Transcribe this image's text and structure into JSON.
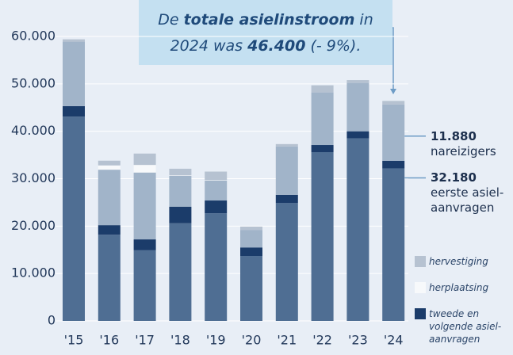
{
  "chart_data": {
    "type": "stacked-bar",
    "title_lines": [
      [
        {
          "text": "De ",
          "bold": false
        },
        {
          "text": "totale asielinstroom",
          "bold": true
        },
        {
          "text": " in",
          "bold": false
        }
      ],
      [
        {
          "text": "2024 was ",
          "bold": false
        },
        {
          "text": "46.400",
          "bold": true
        },
        {
          "text": " (- 9%).",
          "bold": false
        }
      ]
    ],
    "categories": [
      "'15",
      "'16",
      "'17",
      "'18",
      "'19",
      "'20",
      "'21",
      "'22",
      "'23",
      "'24"
    ],
    "series": [
      {
        "name": "eerste asiel­aanvragen",
        "label": "32.180",
        "color": "#4f6e93",
        "values": [
          43100,
          18200,
          14900,
          20600,
          22700,
          13700,
          24900,
          35600,
          38500,
          32180
        ]
      },
      {
        "name": "tweede en volgende asiel­aanvragen",
        "color": "#1b3c6a",
        "values": [
          2200,
          2000,
          2300,
          3500,
          2700,
          1800,
          1700,
          1500,
          1500,
          1600
        ]
      },
      {
        "name": "nareizigers",
        "label": "11.880",
        "color": "#a1b4c9",
        "values": [
          13600,
          11700,
          14100,
          6500,
          4200,
          3700,
          10200,
          11100,
          10200,
          11880
        ]
      },
      {
        "name": "herplaatsing",
        "color": "#f7f9fb",
        "values": [
          0,
          900,
          1600,
          100,
          100,
          0,
          0,
          0,
          0,
          0
        ]
      },
      {
        "name": "hervestiging",
        "color": "#b6c2d1",
        "values": [
          500,
          1000,
          2400,
          1400,
          1800,
          700,
          500,
          1500,
          600,
          740
        ]
      }
    ],
    "ylim": [
      0,
      60000
    ],
    "yticks": [
      0,
      {
        "value": 10000,
        "label": "10.000"
      },
      {
        "value": 20000,
        "label": "20.000"
      },
      {
        "value": 30000,
        "label": "30.000"
      },
      {
        "value": 40000,
        "label": "40.000"
      },
      {
        "value": 50000,
        "label": "50.000"
      },
      {
        "value": 60000,
        "label": "60.000"
      }
    ],
    "grid": true
  }
}
